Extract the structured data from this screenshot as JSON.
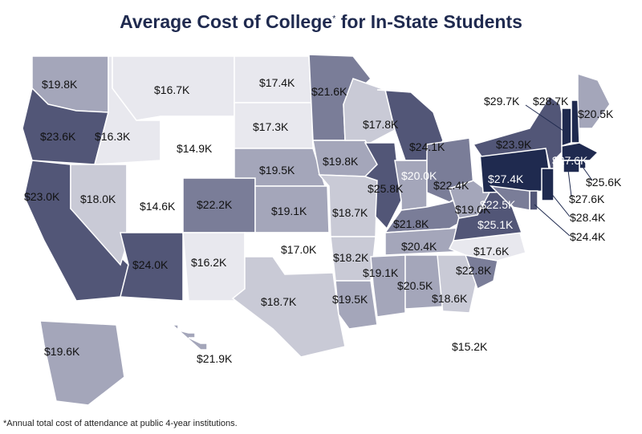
{
  "title": {
    "main": "Average Cost of College",
    "marker": "*",
    "rest": " for In-State Students"
  },
  "footnote": "*Annual total cost of attendance at public 4-year institutions.",
  "colors": {
    "lightest": "#e8e8ee",
    "light": "#c9cad6",
    "mid": "#a4a6ba",
    "medium": "#7a7d98",
    "dark": "#525677",
    "darkest": "#1f2a4f"
  },
  "states": [
    {
      "id": "WA",
      "cost": "$19.8K",
      "shade": "mid"
    },
    {
      "id": "OR",
      "cost": "$23.6K",
      "shade": "dark"
    },
    {
      "id": "CA",
      "cost": "$23.0K",
      "shade": "dark"
    },
    {
      "id": "ID",
      "cost": "$16.3K",
      "shade": "lightest"
    },
    {
      "id": "NV",
      "cost": "$18.0K",
      "shade": "light"
    },
    {
      "id": "MT",
      "cost": "$16.7K",
      "shade": "lightest"
    },
    {
      "id": "WY",
      "cost": "$14.9K",
      "shade": "white"
    },
    {
      "id": "UT",
      "cost": "$14.6K",
      "shade": "white"
    },
    {
      "id": "AZ",
      "cost": "$24.0K",
      "shade": "dark"
    },
    {
      "id": "CO",
      "cost": "$22.2K",
      "shade": "medium"
    },
    {
      "id": "NM",
      "cost": "$16.2K",
      "shade": "lightest"
    },
    {
      "id": "ND",
      "cost": "$17.4K",
      "shade": "lightest"
    },
    {
      "id": "SD",
      "cost": "$17.3K",
      "shade": "lightest"
    },
    {
      "id": "NE",
      "cost": "$19.5K",
      "shade": "mid"
    },
    {
      "id": "KS",
      "cost": "$19.1K",
      "shade": "mid"
    },
    {
      "id": "OK",
      "cost": "$17.0K",
      "shade": "white"
    },
    {
      "id": "TX",
      "cost": "$18.7K",
      "shade": "light"
    },
    {
      "id": "MN",
      "cost": "$21.6K",
      "shade": "medium"
    },
    {
      "id": "IA",
      "cost": "$19.8K",
      "shade": "mid"
    },
    {
      "id": "MO",
      "cost": "$18.7K",
      "shade": "light"
    },
    {
      "id": "AR",
      "cost": "$18.2K",
      "shade": "light"
    },
    {
      "id": "LA",
      "cost": "$19.5K",
      "shade": "mid"
    },
    {
      "id": "WI",
      "cost": "$17.8K",
      "shade": "light"
    },
    {
      "id": "IL",
      "cost": "$25.8K",
      "shade": "dark"
    },
    {
      "id": "MI",
      "cost": "$24.1K",
      "shade": "dark"
    },
    {
      "id": "IN",
      "cost": "$20.0K",
      "shade": "mid"
    },
    {
      "id": "OH",
      "cost": "$22.4K",
      "shade": "medium"
    },
    {
      "id": "KY",
      "cost": "$21.8K",
      "shade": "medium"
    },
    {
      "id": "TN",
      "cost": "$20.4K",
      "shade": "mid"
    },
    {
      "id": "MS",
      "cost": "$19.1K",
      "shade": "mid"
    },
    {
      "id": "AL",
      "cost": "$20.5K",
      "shade": "mid"
    },
    {
      "id": "GA",
      "cost": "$18.6K",
      "shade": "light"
    },
    {
      "id": "FL",
      "cost": "$15.2K",
      "shade": "white"
    },
    {
      "id": "SC",
      "cost": "$22.8K",
      "shade": "medium"
    },
    {
      "id": "NC",
      "cost": "$17.6K",
      "shade": "lightest"
    },
    {
      "id": "VA",
      "cost": "$25.1K",
      "shade": "dark"
    },
    {
      "id": "WV",
      "cost": "$19.0K",
      "shade": "mid"
    },
    {
      "id": "PA",
      "cost": "$27.4K",
      "shade": "darkest"
    },
    {
      "id": "NY",
      "cost": "$23.9K",
      "shade": "dark"
    },
    {
      "id": "ME",
      "cost": "$20.5K",
      "shade": "mid"
    },
    {
      "id": "VT",
      "cost": "$29.7K",
      "shade": "darkest"
    },
    {
      "id": "NH",
      "cost": "$28.7K",
      "shade": "darkest"
    },
    {
      "id": "MA",
      "cost": "$27.6K",
      "shade": "darkest"
    },
    {
      "id": "RI",
      "cost": "$25.6K",
      "shade": "darkest"
    },
    {
      "id": "CT",
      "cost": "$27.6K",
      "shade": "darkest"
    },
    {
      "id": "NJ",
      "cost": "$28.4K",
      "shade": "darkest"
    },
    {
      "id": "DE",
      "cost": "$24.4K",
      "shade": "dark"
    },
    {
      "id": "MD",
      "cost": "$22.5K",
      "shade": "medium"
    },
    {
      "id": "AK",
      "cost": "$19.6K",
      "shade": "mid"
    },
    {
      "id": "HI",
      "cost": "$21.9K",
      "shade": "mid"
    }
  ]
}
